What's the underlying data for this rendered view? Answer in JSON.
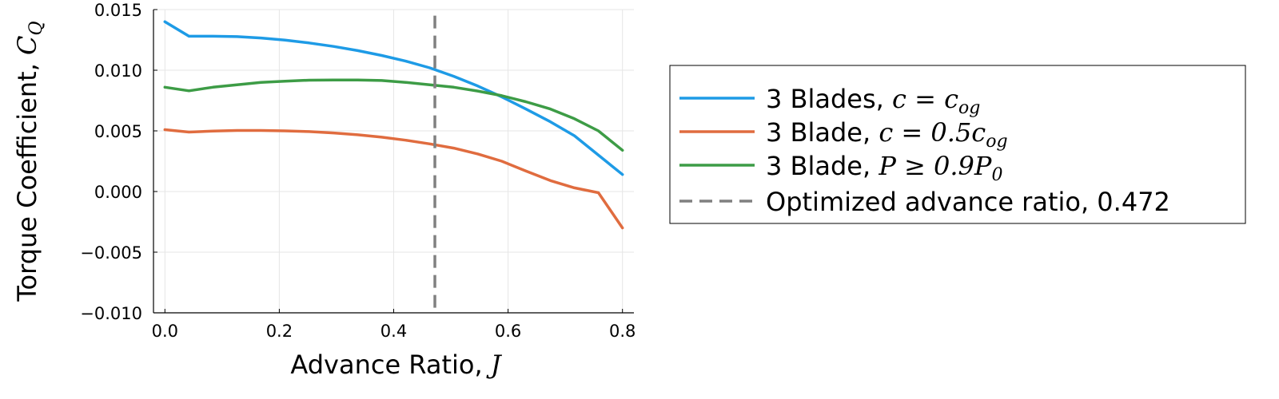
{
  "chart_data": {
    "type": "line",
    "xlabel": {
      "text": "Advance Ratio, ",
      "math": "J"
    },
    "ylabel": {
      "text": "Torque Coefficient, ",
      "math": "C",
      "math_sub": "Q"
    },
    "xlim": [
      -0.02,
      0.82
    ],
    "ylim": [
      -0.01,
      0.015
    ],
    "xticks": [
      0.0,
      0.2,
      0.4,
      0.6,
      0.8
    ],
    "xtick_labels": [
      "0.0",
      "0.2",
      "0.4",
      "0.6",
      "0.8"
    ],
    "yticks": [
      -0.01,
      -0.005,
      0.0,
      0.005,
      0.01,
      0.015
    ],
    "ytick_labels": [
      "−0.010",
      "−0.005",
      "0.000",
      "0.005",
      "0.010",
      "0.015"
    ],
    "grid": true,
    "legend_position": "outside-right",
    "series": [
      {
        "name": "3 Blades, ",
        "math": "c = c",
        "math_sub": "og",
        "color": "#1e9be6",
        "style": "solid",
        "x": [
          0.0,
          0.042,
          0.084,
          0.126,
          0.168,
          0.21,
          0.252,
          0.295,
          0.337,
          0.379,
          0.421,
          0.463,
          0.505,
          0.547,
          0.589,
          0.631,
          0.674,
          0.716,
          0.758,
          0.8
        ],
        "y": [
          0.014,
          0.0128,
          0.0128,
          0.01277,
          0.01266,
          0.01248,
          0.01225,
          0.01196,
          0.01162,
          0.01122,
          0.01075,
          0.0102,
          0.0095,
          0.0087,
          0.0078,
          0.0068,
          0.00575,
          0.0046,
          0.003,
          0.0014
        ]
      },
      {
        "name": "3 Blade, ",
        "math": "c = 0.5c",
        "math_sub": "og",
        "color": "#e06c3f",
        "style": "solid",
        "x": [
          0.0,
          0.042,
          0.084,
          0.126,
          0.168,
          0.21,
          0.252,
          0.295,
          0.337,
          0.379,
          0.421,
          0.463,
          0.505,
          0.547,
          0.589,
          0.631,
          0.674,
          0.716,
          0.758,
          0.8
        ],
        "y": [
          0.0051,
          0.0049,
          0.00498,
          0.00503,
          0.00503,
          0.005,
          0.00494,
          0.00483,
          0.00468,
          0.00448,
          0.00423,
          0.00393,
          0.00358,
          0.0031,
          0.0025,
          0.0017,
          0.0009,
          0.0003,
          -0.0001,
          -0.003
        ]
      },
      {
        "name": "3 Blade, ",
        "math": "P ≥ 0.9P",
        "math_sub": "0",
        "color": "#3d9c46",
        "style": "solid",
        "x": [
          0.0,
          0.042,
          0.084,
          0.126,
          0.168,
          0.21,
          0.252,
          0.295,
          0.337,
          0.379,
          0.421,
          0.463,
          0.505,
          0.547,
          0.589,
          0.631,
          0.674,
          0.716,
          0.758,
          0.8
        ],
        "y": [
          0.0086,
          0.0083,
          0.0086,
          0.0088,
          0.009,
          0.0091,
          0.00918,
          0.0092,
          0.0092,
          0.00915,
          0.009,
          0.0088,
          0.0086,
          0.00828,
          0.0079,
          0.0074,
          0.0068,
          0.006,
          0.005,
          0.0034
        ]
      },
      {
        "name": "Optimized advance ratio, 0.472",
        "math": "",
        "math_sub": "",
        "color": "#808080",
        "style": "dashed",
        "vline_x": 0.472,
        "y_extent": [
          -0.01,
          0.0145
        ]
      }
    ]
  }
}
